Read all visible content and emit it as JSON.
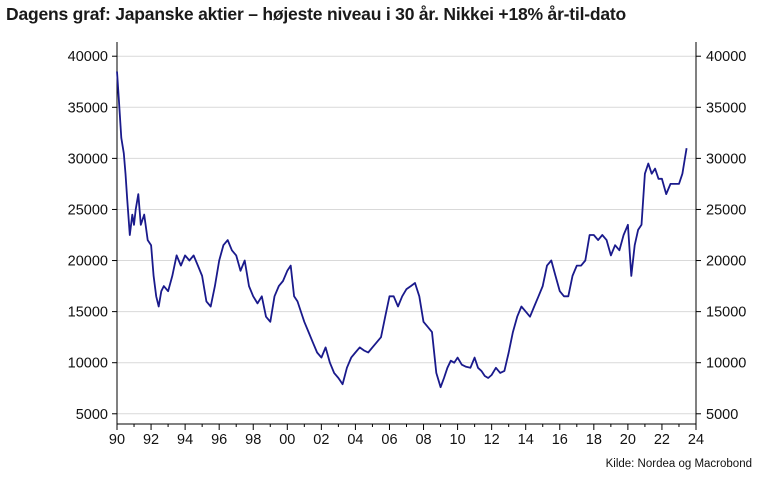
{
  "title": "Dagens graf: Japanske aktier – højeste niveau i 30 år. Nikkei +18% år-til-dato",
  "source": "Kilde: Nordea og Macrobond",
  "colors": {
    "line": "#1a1a8c",
    "grid": "#d9d9d9",
    "axis": "#000000"
  },
  "chart_data": {
    "type": "line",
    "title": "Dagens graf: Japanske aktier – højeste niveau i 30 år. Nikkei +18% år-til-dato",
    "xlabel": "",
    "ylabel": "",
    "xlim": [
      1990,
      2024
    ],
    "ylim": [
      4000,
      41000
    ],
    "x_ticks": [
      1990,
      1992,
      1994,
      1996,
      1998,
      2000,
      2002,
      2004,
      2006,
      2008,
      2010,
      2012,
      2014,
      2016,
      2018,
      2020,
      2022,
      2024
    ],
    "x_tick_labels": [
      "90",
      "92",
      "94",
      "96",
      "98",
      "00",
      "02",
      "04",
      "06",
      "08",
      "10",
      "12",
      "14",
      "16",
      "18",
      "20",
      "22",
      "24"
    ],
    "y_ticks": [
      5000,
      10000,
      15000,
      20000,
      25000,
      30000,
      35000,
      40000
    ],
    "y_tick_labels": [
      "5000",
      "10000",
      "15000",
      "20000",
      "25000",
      "30000",
      "35000",
      "40000"
    ],
    "grid": true,
    "legend": "none",
    "series": [
      {
        "x": [
          1990.0,
          1990.1,
          1990.25,
          1990.4,
          1990.5,
          1990.6,
          1990.75,
          1990.9,
          1991.0,
          1991.1,
          1991.25,
          1991.4,
          1991.6,
          1991.8,
          1992.0,
          1992.15,
          1992.3,
          1992.45,
          1992.6,
          1992.75,
          1993.0,
          1993.25,
          1993.5,
          1993.75,
          1994.0,
          1994.25,
          1994.5,
          1994.75,
          1995.0,
          1995.25,
          1995.5,
          1995.75,
          1996.0,
          1996.25,
          1996.5,
          1996.75,
          1997.0,
          1997.25,
          1997.5,
          1997.75,
          1998.0,
          1998.25,
          1998.5,
          1998.75,
          1999.0,
          1999.25,
          1999.5,
          1999.75,
          2000.0,
          2000.2,
          2000.4,
          2000.6,
          2000.8,
          2001.0,
          2001.25,
          2001.5,
          2001.75,
          2002.0,
          2002.25,
          2002.5,
          2002.75,
          2003.0,
          2003.25,
          2003.5,
          2003.75,
          2004.0,
          2004.25,
          2004.5,
          2004.75,
          2005.0,
          2005.25,
          2005.5,
          2005.75,
          2006.0,
          2006.25,
          2006.5,
          2006.75,
          2007.0,
          2007.25,
          2007.5,
          2007.75,
          2008.0,
          2008.25,
          2008.5,
          2008.75,
          2009.0,
          2009.2,
          2009.4,
          2009.6,
          2009.8,
          2010.0,
          2010.25,
          2010.5,
          2010.75,
          2011.0,
          2011.2,
          2011.4,
          2011.6,
          2011.8,
          2012.0,
          2012.25,
          2012.5,
          2012.75,
          2013.0,
          2013.25,
          2013.5,
          2013.75,
          2014.0,
          2014.25,
          2014.5,
          2014.75,
          2015.0,
          2015.25,
          2015.5,
          2015.75,
          2016.0,
          2016.25,
          2016.5,
          2016.75,
          2017.0,
          2017.25,
          2017.5,
          2017.75,
          2018.0,
          2018.25,
          2018.5,
          2018.75,
          2019.0,
          2019.25,
          2019.5,
          2019.75,
          2020.0,
          2020.2,
          2020.4,
          2020.6,
          2020.8,
          2021.0,
          2021.2,
          2021.4,
          2021.6,
          2021.8,
          2022.0,
          2022.25,
          2022.5,
          2022.75,
          2023.0,
          2023.2,
          2023.35,
          2023.45
        ],
        "values": [
          38500,
          36000,
          32000,
          30500,
          28500,
          26000,
          22500,
          24500,
          23500,
          25000,
          26500,
          23500,
          24500,
          22000,
          21500,
          18500,
          16500,
          15500,
          17000,
          17500,
          17000,
          18500,
          20500,
          19500,
          20500,
          20000,
          20500,
          19500,
          18500,
          16000,
          15500,
          17500,
          20000,
          21500,
          22000,
          21000,
          20500,
          19000,
          20000,
          17500,
          16500,
          15800,
          16500,
          14500,
          14000,
          16500,
          17500,
          18000,
          19000,
          19500,
          16500,
          16000,
          15000,
          14000,
          13000,
          12000,
          11000,
          10500,
          11500,
          10000,
          9000,
          8500,
          7900,
          9500,
          10500,
          11000,
          11500,
          11200,
          11000,
          11500,
          12000,
          12500,
          14500,
          16500,
          16500,
          15500,
          16500,
          17200,
          17500,
          17800,
          16500,
          14000,
          13500,
          13000,
          9000,
          7600,
          8500,
          9500,
          10200,
          10000,
          10500,
          9800,
          9600,
          9500,
          10500,
          9500,
          9200,
          8700,
          8500,
          8800,
          9500,
          9000,
          9200,
          11000,
          13000,
          14500,
          15500,
          15000,
          14500,
          15500,
          16500,
          17500,
          19500,
          20000,
          18500,
          17000,
          16500,
          16500,
          18500,
          19500,
          19500,
          20000,
          22500,
          22500,
          22000,
          22500,
          22000,
          20500,
          21500,
          21000,
          22500,
          23500,
          18500,
          21500,
          23000,
          23500,
          28500,
          29500,
          28500,
          29000,
          28000,
          28000,
          26500,
          27500,
          27500,
          27500,
          28500,
          30000,
          31000
        ]
      }
    ]
  }
}
